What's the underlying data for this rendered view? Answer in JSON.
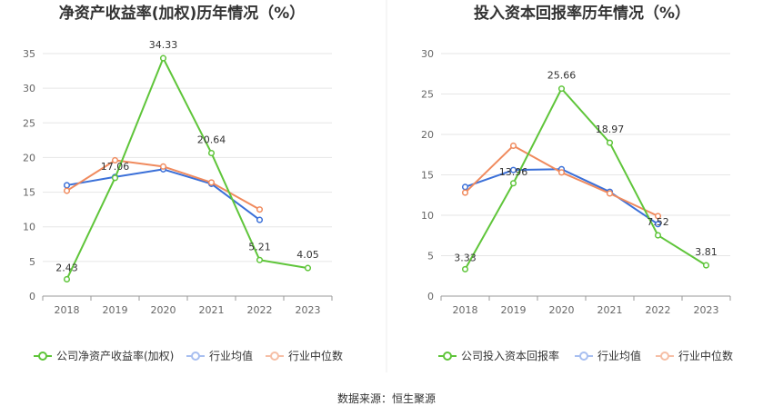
{
  "source_note": "数据来源：恒生聚源",
  "legend_common": [
    "行业均值",
    "行业中位数"
  ],
  "colors": {
    "company": "#5fc53a",
    "avg": "#3a6fd8",
    "median": "#f08a5d",
    "legend_avg": "#a8bff0",
    "legend_median": "#f6bfa6",
    "grid": "#e6e6e6",
    "axis": "#999999"
  },
  "chart_data": [
    {
      "type": "line",
      "title": "净资产收益率(加权)历年情况（%）",
      "categories": [
        "2018",
        "2019",
        "2020",
        "2021",
        "2022",
        "2023"
      ],
      "ylim": [
        0,
        35
      ],
      "yticks": [
        0,
        5,
        10,
        15,
        20,
        25,
        30,
        35
      ],
      "grid": true,
      "legend_position": "bottom",
      "series": [
        {
          "name": "公司净资产收益率(加权)",
          "color": "#5fc53a",
          "values": [
            2.43,
            17.06,
            34.33,
            20.64,
            5.21,
            4.05
          ],
          "labels": [
            "2.43",
            "17.06",
            "34.33",
            "20.64",
            "5.21",
            "4.05"
          ]
        },
        {
          "name": "行业均值",
          "color": "#3a6fd8",
          "values": [
            16.0,
            17.2,
            18.3,
            16.2,
            11.0,
            null
          ]
        },
        {
          "name": "行业中位数",
          "color": "#f08a5d",
          "values": [
            15.2,
            19.6,
            18.7,
            16.4,
            12.5,
            null
          ]
        }
      ]
    },
    {
      "type": "line",
      "title": "投入资本回报率历年情况（%）",
      "categories": [
        "2018",
        "2019",
        "2020",
        "2021",
        "2022",
        "2023"
      ],
      "ylim": [
        0,
        30
      ],
      "yticks": [
        0,
        5,
        10,
        15,
        20,
        25,
        30
      ],
      "grid": true,
      "legend_position": "bottom",
      "series": [
        {
          "name": "公司投入资本回报率",
          "color": "#5fc53a",
          "values": [
            3.33,
            13.96,
            25.66,
            18.97,
            7.52,
            3.81
          ],
          "labels": [
            "3.33",
            "13.96",
            "25.66",
            "18.97",
            "7.52",
            "3.81"
          ]
        },
        {
          "name": "行业均值",
          "color": "#3a6fd8",
          "values": [
            13.5,
            15.6,
            15.7,
            12.9,
            8.9,
            null
          ]
        },
        {
          "name": "行业中位数",
          "color": "#f08a5d",
          "values": [
            12.8,
            18.6,
            15.3,
            12.7,
            9.9,
            null
          ]
        }
      ]
    }
  ]
}
